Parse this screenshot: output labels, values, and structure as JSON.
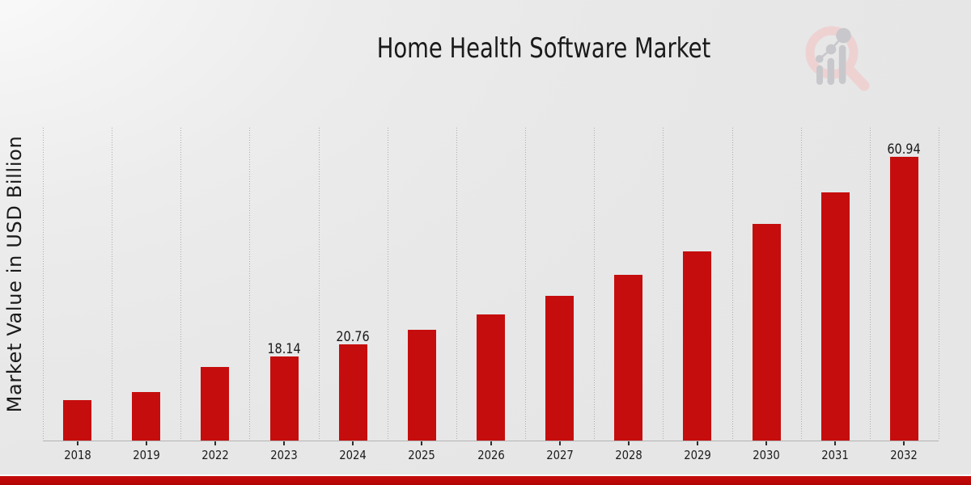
{
  "title": "Home Health Software Market",
  "ylabel": "Market Value in USD Billion",
  "chart_data": {
    "type": "bar",
    "categories": [
      "2018",
      "2019",
      "2022",
      "2023",
      "2024",
      "2025",
      "2026",
      "2027",
      "2028",
      "2029",
      "2030",
      "2031",
      "2032"
    ],
    "values": [
      8.7,
      10.5,
      15.9,
      18.14,
      20.76,
      23.75,
      27.17,
      31.09,
      35.57,
      40.69,
      46.56,
      53.27,
      60.94
    ],
    "value_labels": {
      "2023": "18.14",
      "2024": "20.76",
      "2032": "60.94"
    },
    "title": "Home Health Software Market",
    "xlabel": "",
    "ylabel": "Market Value in USD Billion",
    "ylim": [
      0,
      67.25
    ],
    "grid": "vertical-dotted-category-boundaries",
    "legend": "none",
    "bar_color": "#c60d0d",
    "text_color": "#1a1a1a",
    "gridline_color": "#adadad",
    "axis_line_color": "#b3b3b3"
  },
  "branding": {
    "logo_icon": "magnifier-bar-chart-watermark-icon",
    "ring_color": "#eccccc",
    "glyph_color": "#c6c6cb",
    "footer_band_color": "#bb0606"
  }
}
